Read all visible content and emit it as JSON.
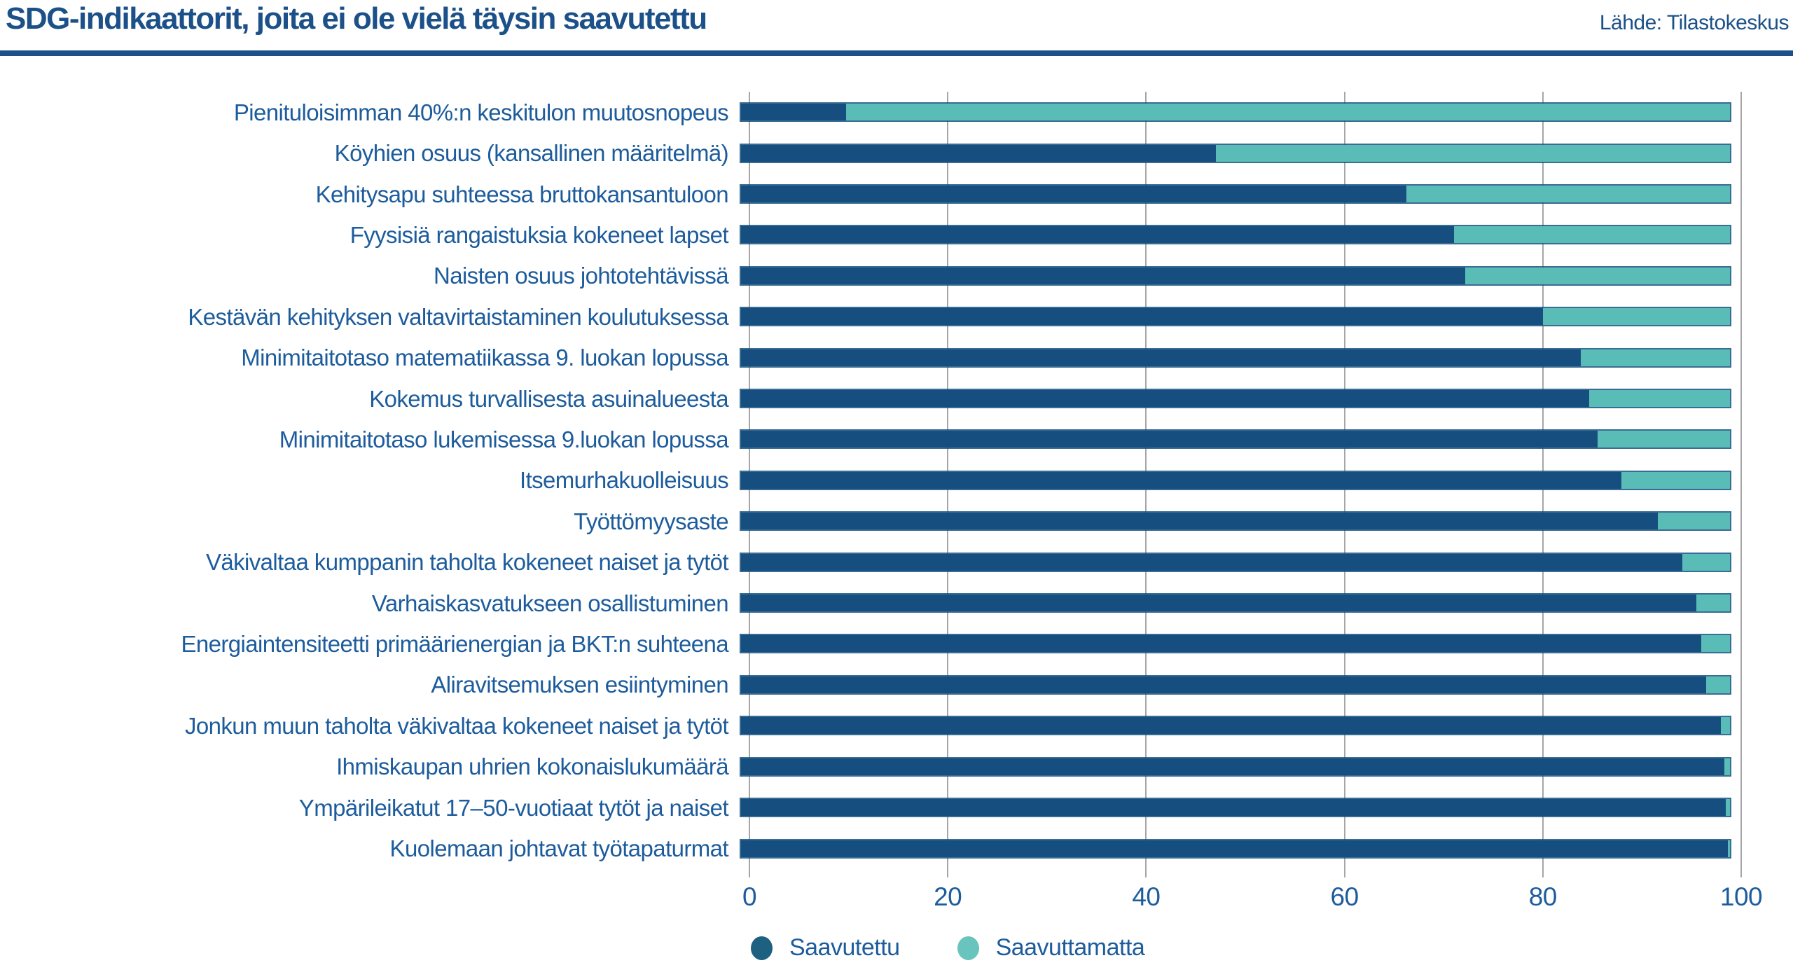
{
  "header": {
    "title": "SDG-indikaattorit, joita ei ole vielä täysin saavutettu",
    "source": "Lähde: Tilastokeskus"
  },
  "legend": {
    "items": [
      {
        "label": "Saavutettu",
        "dot_color": "#1d6080"
      },
      {
        "label": "Saavuttamatta",
        "dot_color": "#68c4bd"
      }
    ]
  },
  "colors": {
    "achieved_bar": "#154e7f",
    "not_achieved_bar": "#5abcb6",
    "title_text": "#1b5188",
    "label_text": "#1d5c9c",
    "gridline": "#a6a6a6",
    "divider": "#1b5188"
  },
  "chart_data": {
    "type": "bar",
    "orientation": "horizontal",
    "stacked": true,
    "title": "SDG-indikaattorit, joita ei ole vielä täysin saavutettu",
    "xlabel": "",
    "ylabel": "",
    "xlim": [
      0,
      100
    ],
    "xticks": [
      0,
      20,
      40,
      60,
      80,
      100
    ],
    "grid": "vertical",
    "legend_position": "bottom-left",
    "categories": [
      "Pienituloisimman 40%:n keskitulon muutosnopeus",
      "Köyhien osuus (kansallinen määritelmä)",
      "Kehitysapu suhteessa bruttokansantuloon",
      "Fyysisiä rangaistuksia kokeneet lapset",
      "Naisten osuus johtotehtävissä",
      "Kestävän kehityksen valtavirtaistaminen koulutuksessa",
      "Minimitaitotaso matematiikassa 9. luokan lopussa",
      "Kokemus turvallisesta asuinalueesta",
      "Minimitaitotaso lukemisessa 9.luokan lopussa",
      "Itsemurhakuolleisuus",
      "Työttömyysaste",
      "Väkivaltaa kumppanin taholta kokeneet naiset ja tytöt",
      "Varhaiskasvatukseen osallistuminen",
      "Energiaintensiteetti primäärienergian ja BKT:n suhteena",
      "Aliravitsemuksen esiintyminen",
      "Jonkun muun taholta väkivaltaa kokeneet naiset ja tytöt",
      "Ihmiskaupan uhrien kokonaislukumäärä",
      "Ympärileikatut 17–50-vuotiaat tytöt ja naiset",
      "Kuolemaan johtavat työtapaturmat"
    ],
    "series": [
      {
        "name": "Saavutettu",
        "color": "#154e7f",
        "values": [
          10.6,
          48.0,
          67.3,
          72.1,
          73.2,
          81.1,
          84.9,
          85.8,
          86.6,
          89.0,
          92.7,
          95.2,
          96.6,
          97.1,
          97.6,
          99.1,
          99.4,
          99.6,
          99.8
        ]
      },
      {
        "name": "Saavuttamatta",
        "color": "#5abcb6",
        "values": [
          89.4,
          52.0,
          32.7,
          27.9,
          26.8,
          18.9,
          15.1,
          14.2,
          13.4,
          11.0,
          7.3,
          4.8,
          3.4,
          2.9,
          2.4,
          0.9,
          0.6,
          0.4,
          0.2
        ]
      }
    ]
  }
}
